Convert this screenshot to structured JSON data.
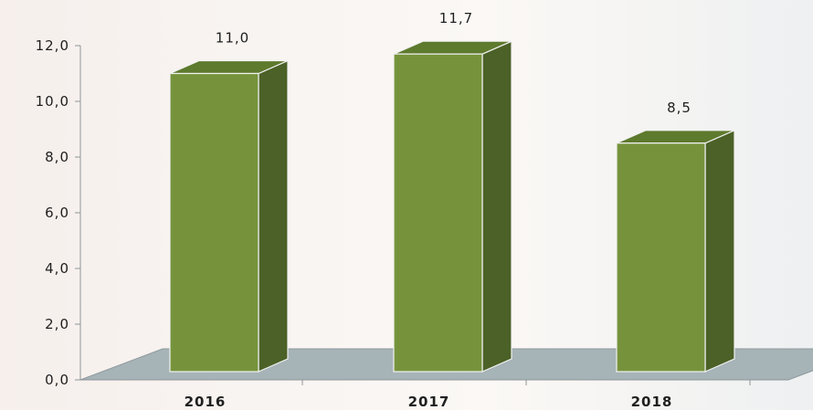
{
  "chart_data": {
    "type": "bar",
    "categories": [
      "2016",
      "2017",
      "2018"
    ],
    "values": [
      11.0,
      11.7,
      8.5
    ],
    "data_labels": [
      "11,0",
      "11,7",
      "8,5"
    ],
    "y_ticks": [
      {
        "value": 0,
        "label": "0,0"
      },
      {
        "value": 2,
        "label": "2,0"
      },
      {
        "value": 4,
        "label": "4,0"
      },
      {
        "value": 6,
        "label": "6,0"
      },
      {
        "value": 8,
        "label": "8,0"
      },
      {
        "value": 10,
        "label": "10,0"
      },
      {
        "value": 12,
        "label": "12,0"
      }
    ],
    "ylim": [
      0,
      12
    ],
    "style": "3d-column",
    "grid": false,
    "legend": "none",
    "colors": {
      "bar_front": "#76933c",
      "bar_top": "#5e7a2d",
      "bar_side": "#4b6127",
      "floor": "#a6b3b7",
      "axis": "#8e9599",
      "text": "#1f1f1f"
    }
  }
}
